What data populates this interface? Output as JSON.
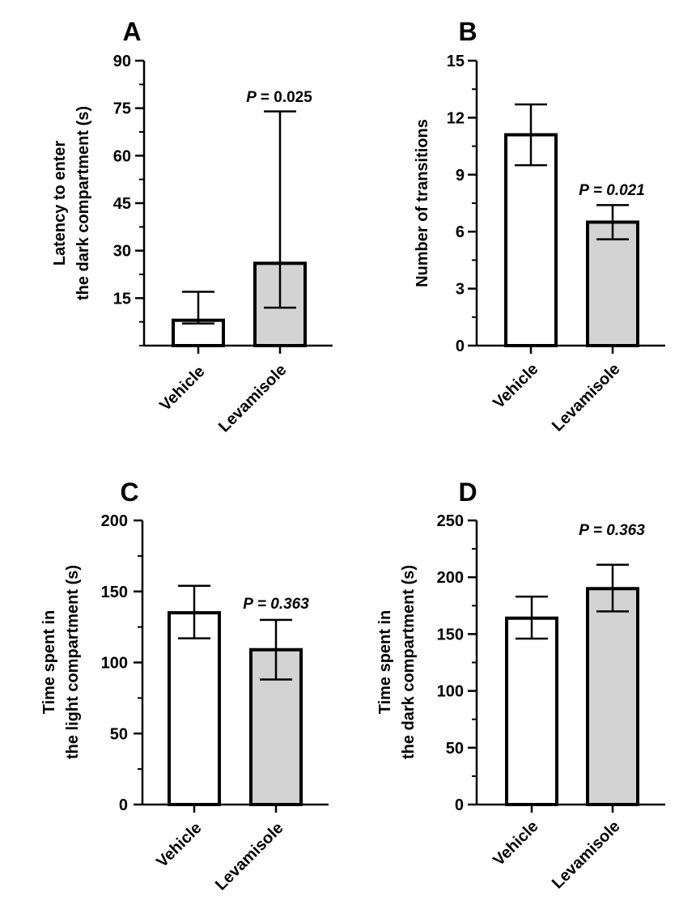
{
  "colors": {
    "axis": "#000000",
    "vehicle_fill": "#ffffff",
    "levamisole_fill": "#d3d3d3"
  },
  "chart_data": [
    {
      "panel": "A",
      "type": "bar",
      "ylabel_lines": [
        "Latency to enter",
        "the dark compartment (s)"
      ],
      "categories": [
        "Vehicle",
        "Levamisole"
      ],
      "values": [
        8,
        26
      ],
      "error_low": [
        7,
        12
      ],
      "error_high": [
        17,
        74
      ],
      "ylim": [
        0,
        90
      ],
      "yticks": [
        15,
        30,
        45,
        60,
        75,
        90
      ],
      "minor_step": 7.5,
      "annotation": {
        "prefix": "P",
        "value": "= 0.025",
        "italic_value": false
      },
      "grid": false
    },
    {
      "panel": "B",
      "type": "bar",
      "ylabel_lines": [
        "Number of transitions"
      ],
      "categories": [
        "Vehicle",
        "Levamisole"
      ],
      "values": [
        11.1,
        6.5
      ],
      "error_low": [
        9.5,
        5.6
      ],
      "error_high": [
        12.7,
        7.4
      ],
      "ylim": [
        0,
        15
      ],
      "yticks": [
        0,
        3,
        6,
        9,
        12,
        15
      ],
      "minor_step": 1.5,
      "annotation": {
        "prefix": "P",
        "value": "= 0.021",
        "italic_value": true
      },
      "grid": false
    },
    {
      "panel": "C",
      "type": "bar",
      "ylabel_lines": [
        "Time spent in",
        "the light compartment (s)"
      ],
      "categories": [
        "Vehicle",
        "Levamisole"
      ],
      "values": [
        135,
        109
      ],
      "error_low": [
        117,
        88
      ],
      "error_high": [
        154,
        130
      ],
      "ylim": [
        0,
        200
      ],
      "yticks": [
        0,
        50,
        100,
        150,
        200
      ],
      "minor_step": 25,
      "annotation": {
        "prefix": "P",
        "value": "= 0.363",
        "italic_value": true
      },
      "grid": false
    },
    {
      "panel": "D",
      "type": "bar",
      "ylabel_lines": [
        "Time spent in",
        "the dark compartment (s)"
      ],
      "categories": [
        "Vehicle",
        "Levamisole"
      ],
      "values": [
        164,
        190
      ],
      "error_low": [
        146,
        170
      ],
      "error_high": [
        183,
        211
      ],
      "ylim": [
        0,
        250
      ],
      "yticks": [
        0,
        50,
        100,
        150,
        200,
        250
      ],
      "minor_step": 25,
      "annotation": {
        "prefix": "P",
        "value": "= 0.363",
        "italic_value": true
      },
      "grid": false
    }
  ]
}
